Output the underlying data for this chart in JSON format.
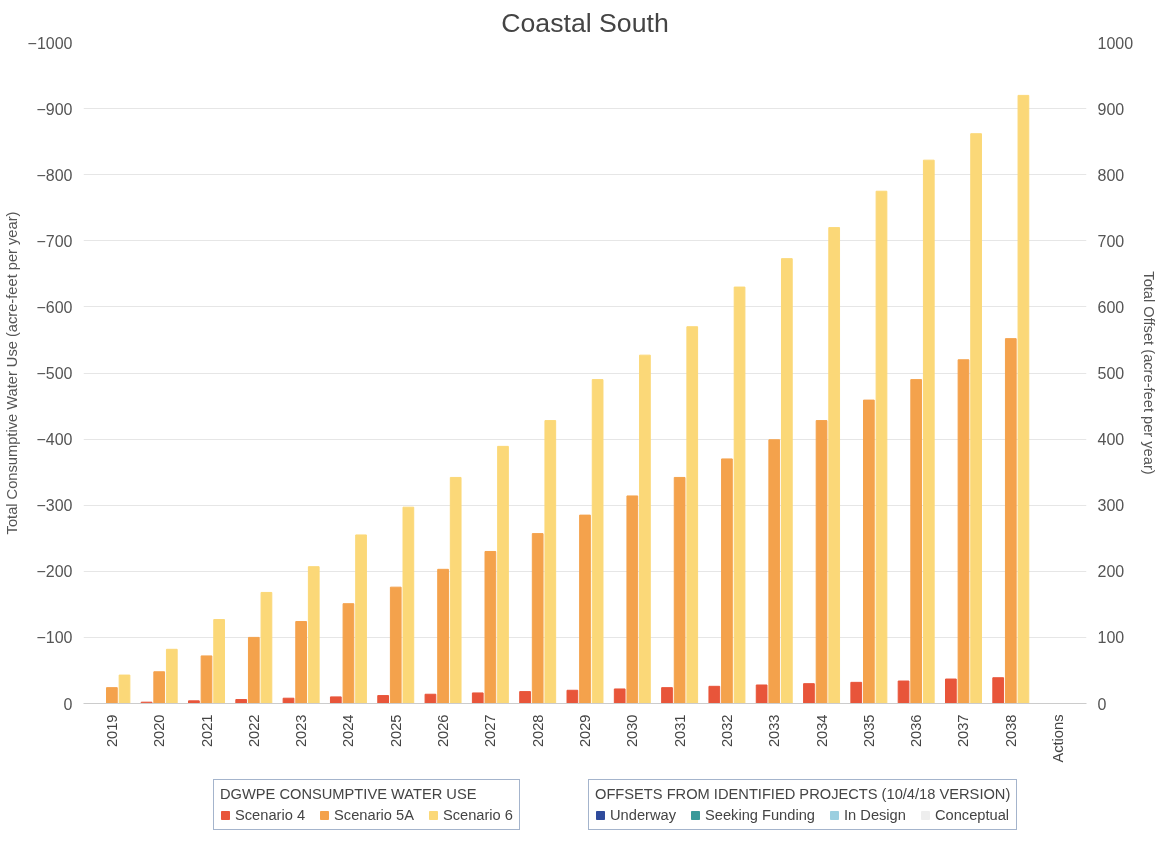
{
  "chart_data": {
    "type": "bar",
    "title": "Coastal South",
    "ylabel": "Total Consumptive Water Use (acre-feet per year)",
    "y2label": "Total Offset (acre-feet per year)",
    "legend_title": [
      "DGWPE CONSUMPTIVE WATER USE",
      "OFFSETS FROM IDENTIFIED PROJECTS (10/4/18 VERSION)"
    ],
    "categories": [
      "2019",
      "2020",
      "2021",
      "2022",
      "2023",
      "2024",
      "2025",
      "2026",
      "2027",
      "2028",
      "2029",
      "2030",
      "2031",
      "2032",
      "2033",
      "2034",
      "2035",
      "2036",
      "2037",
      "2038",
      "Actions"
    ],
    "series": [
      {
        "name": "Scenario 4",
        "color": "#e8553a",
        "values": [
          0,
          -2,
          -4,
          -6,
          -8,
          -10,
          -12,
          -14,
          -16,
          -18,
          -20,
          -22,
          -24,
          -26,
          -28,
          -30,
          -32,
          -34,
          -37,
          -39,
          null
        ]
      },
      {
        "name": "Scenario 5A",
        "color": "#f4a24c",
        "values": [
          -24,
          -48,
          -72,
          -100,
          -124,
          -151,
          -176,
          -203,
          -230,
          -257,
          -285,
          -314,
          -342,
          -370,
          -399,
          -428,
          -459,
          -490,
          -520,
          -552,
          null
        ]
      },
      {
        "name": "Scenario 6",
        "color": "#fbd878",
        "values": [
          -43,
          -82,
          -127,
          -168,
          -207,
          -255,
          -297,
          -342,
          -389,
          -428,
          -490,
          -527,
          -570,
          -630,
          -673,
          -720,
          -775,
          -822,
          -862,
          -920,
          null
        ]
      },
      {
        "name": "Underway",
        "color": "#2f4b9c",
        "axis": "y2",
        "values": [
          null,
          null,
          null,
          null,
          null,
          null,
          null,
          null,
          null,
          null,
          null,
          null,
          null,
          null,
          null,
          null,
          null,
          null,
          null,
          null,
          0
        ]
      },
      {
        "name": "Seeking Funding",
        "color": "#3a9a9a",
        "axis": "y2",
        "values": [
          null,
          null,
          null,
          null,
          null,
          null,
          null,
          null,
          null,
          null,
          null,
          null,
          null,
          null,
          null,
          null,
          null,
          null,
          null,
          null,
          0
        ]
      },
      {
        "name": "In Design",
        "color": "#9ccfe0",
        "axis": "y2",
        "values": [
          null,
          null,
          null,
          null,
          null,
          null,
          null,
          null,
          null,
          null,
          null,
          null,
          null,
          null,
          null,
          null,
          null,
          null,
          null,
          null,
          0
        ]
      },
      {
        "name": "Conceptual",
        "color": "#eeeeee",
        "axis": "y2",
        "values": [
          null,
          null,
          null,
          null,
          null,
          null,
          null,
          null,
          null,
          null,
          null,
          null,
          null,
          null,
          null,
          null,
          null,
          null,
          null,
          null,
          0
        ]
      }
    ],
    "ylim": [
      0,
      -1000
    ],
    "yticks": [
      0,
      -100,
      -200,
      -300,
      -400,
      -500,
      -600,
      -700,
      -800,
      -900,
      -1000
    ],
    "y2lim": [
      0,
      1000
    ],
    "y2ticks": [
      0,
      100,
      200,
      300,
      400,
      500,
      600,
      700,
      800,
      900,
      1000
    ],
    "grid": "y",
    "legend": "bottom"
  }
}
